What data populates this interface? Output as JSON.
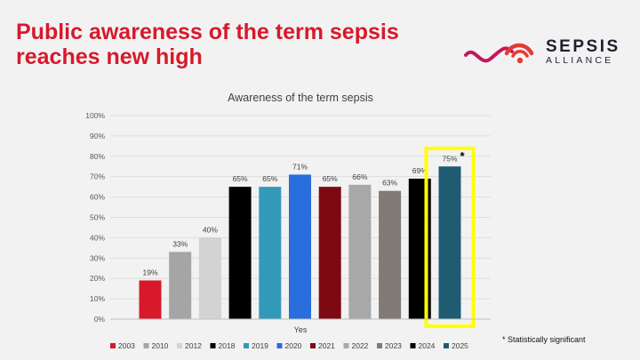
{
  "slide": {
    "headline_line1": "Public awareness of the term sepsis",
    "headline_line2": "reaches new high",
    "logo_name": "SEPSIS",
    "logo_sub": "ALLIANCE",
    "footnote": "* Statistically significant"
  },
  "colors": {
    "headline": "#d7192b",
    "highlight_box": "#ffff00"
  },
  "chart_data": {
    "type": "bar",
    "title": "Awareness of the term sepsis",
    "xlabel": "Yes",
    "ylabel": "",
    "ylim": [
      0,
      100
    ],
    "yticks": [
      "0%",
      "10%",
      "20%",
      "30%",
      "40%",
      "50%",
      "60%",
      "70%",
      "80%",
      "90%",
      "100%"
    ],
    "grid": true,
    "legend_position": "bottom",
    "highlight_marker": "*",
    "series": [
      {
        "name": "2003",
        "value": 19,
        "label": "19%",
        "color": "#d7192b"
      },
      {
        "name": "2010",
        "value": 33,
        "label": "33%",
        "color": "#a5a5a5"
      },
      {
        "name": "2012",
        "value": 40,
        "label": "40%",
        "color": "#d3d3d3"
      },
      {
        "name": "2018",
        "value": 65,
        "label": "65%",
        "color": "#000000"
      },
      {
        "name": "2019",
        "value": 65,
        "label": "65%",
        "color": "#3399b8"
      },
      {
        "name": "2020",
        "value": 71,
        "label": "71%",
        "color": "#2a6ddd"
      },
      {
        "name": "2021",
        "value": 65,
        "label": "65%",
        "color": "#7d0a13"
      },
      {
        "name": "2022",
        "value": 66,
        "label": "66%",
        "color": "#a8a8a8"
      },
      {
        "name": "2023",
        "value": 63,
        "label": "63%",
        "color": "#7f7a75"
      },
      {
        "name": "2024",
        "value": 69,
        "label": "69%",
        "color": "#000000"
      },
      {
        "name": "2025",
        "value": 75,
        "label": "75%",
        "color": "#1f5c72",
        "highlight": true
      }
    ]
  }
}
